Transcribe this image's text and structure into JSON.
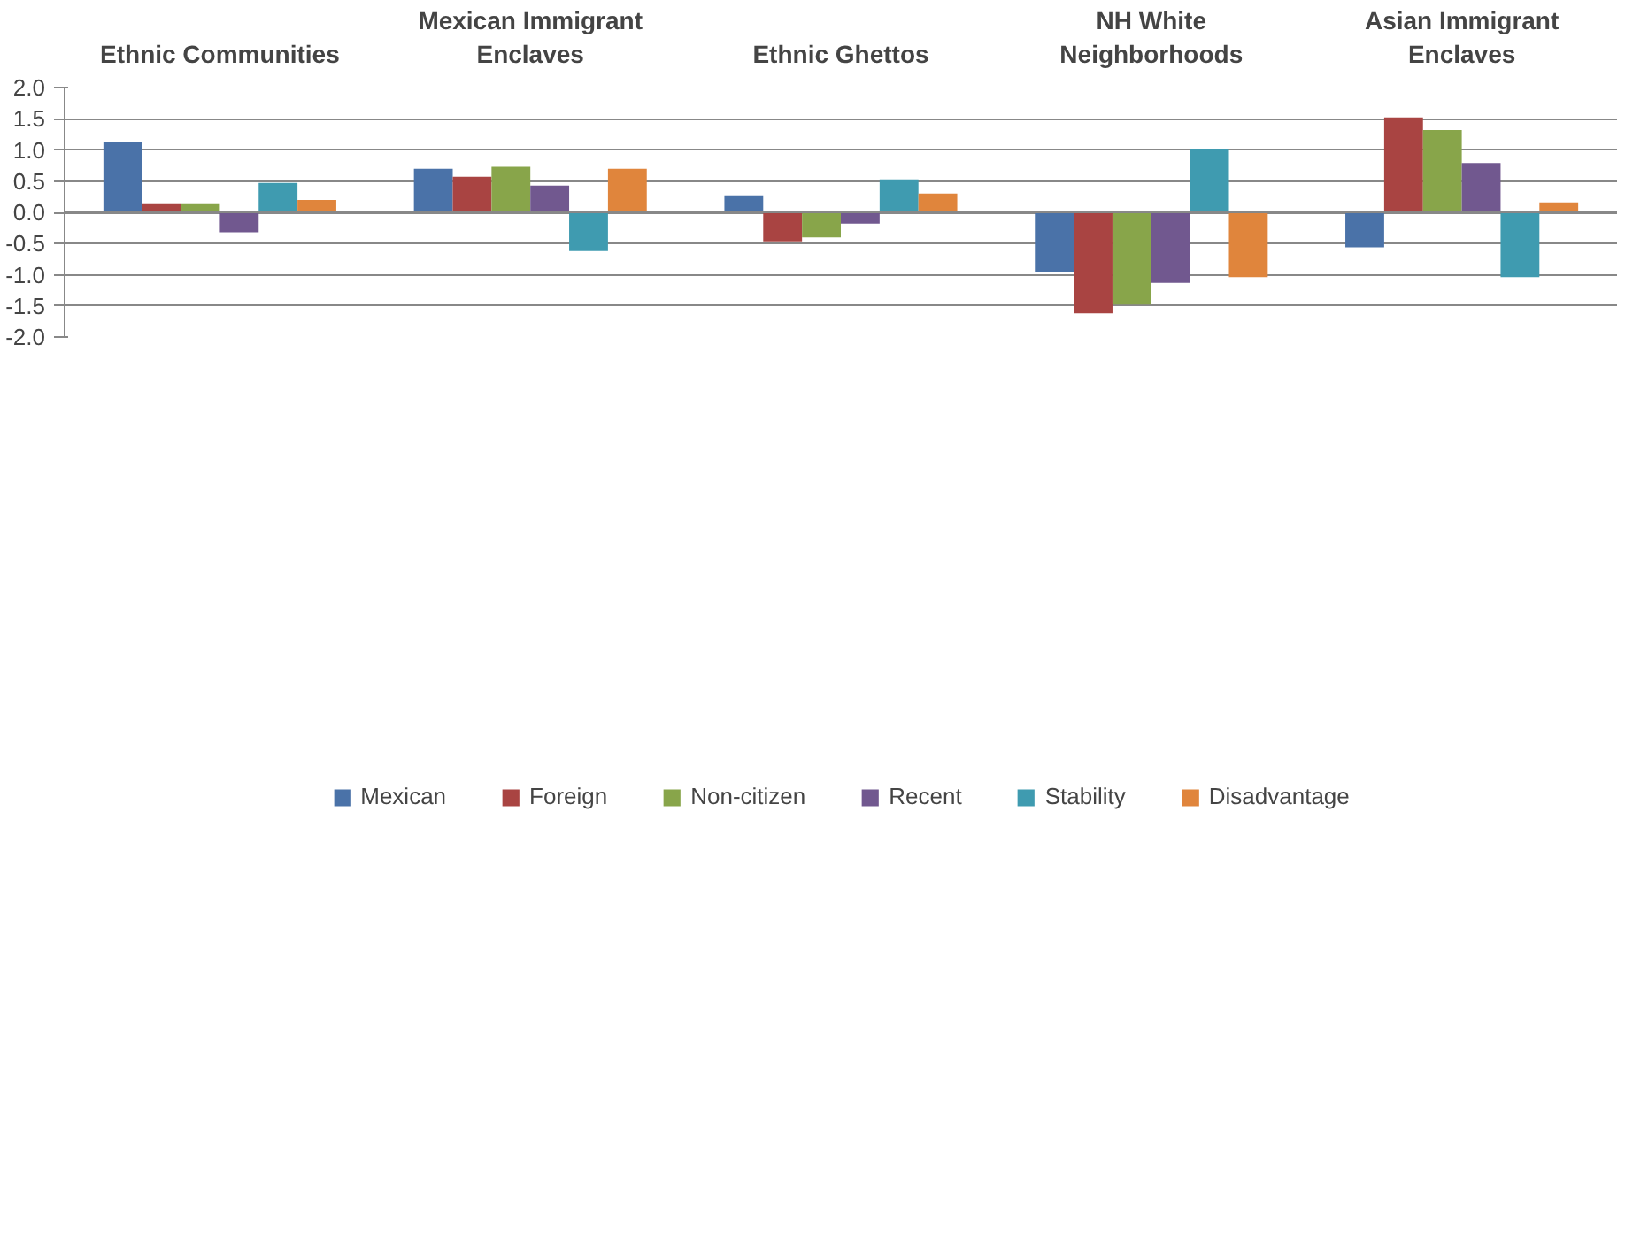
{
  "chart_data": {
    "type": "bar",
    "categories": [
      "Ethnic Communities",
      "Mexican Immigrant Enclaves",
      "Ethnic Ghettos",
      "NH White Neighborhoods",
      "Asian Immigrant Enclaves"
    ],
    "series": [
      {
        "name": "Mexican",
        "color": "#4a72a8",
        "values": [
          1.13,
          0.7,
          0.26,
          -0.95,
          -0.56
        ]
      },
      {
        "name": "Foreign",
        "color": "#a94442",
        "values": [
          0.13,
          0.57,
          -0.48,
          -1.62,
          1.52
        ]
      },
      {
        "name": "Non-citizen",
        "color": "#88a54a",
        "values": [
          0.13,
          0.73,
          -0.4,
          -1.48,
          1.32
        ]
      },
      {
        "name": "Recent",
        "color": "#71588f",
        "values": [
          -0.32,
          0.43,
          -0.18,
          -1.13,
          0.79
        ]
      },
      {
        "name": "Stability",
        "color": "#3f9bb0",
        "values": [
          0.47,
          -0.62,
          0.53,
          1.02,
          -1.04
        ]
      },
      {
        "name": "Disadvantage",
        "color": "#e0853c",
        "values": [
          0.2,
          0.7,
          0.3,
          -1.04,
          0.16
        ]
      }
    ],
    "ylim": [
      -2.0,
      2.0
    ],
    "yticks": [
      {
        "value": -2.0,
        "label": "-2.0"
      },
      {
        "value": -1.5,
        "label": "-1.5"
      },
      {
        "value": -1.0,
        "label": "-1.0"
      },
      {
        "value": -0.5,
        "label": "-0.5"
      },
      {
        "value": 0.0,
        "label": "0.0"
      },
      {
        "value": 0.5,
        "label": "0.5"
      },
      {
        "value": 1.0,
        "label": "1.0"
      },
      {
        "value": 1.5,
        "label": "1.5"
      },
      {
        "value": 2.0,
        "label": "2.0"
      }
    ],
    "grid": "y",
    "legend": "bottom"
  }
}
